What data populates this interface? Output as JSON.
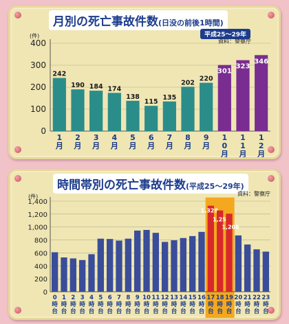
{
  "chart1": {
    "title_main": "月別の死亡事故件数",
    "title_sub": "(日没の前後1時間)",
    "period": "平成25～29年",
    "source": "資料：警察庁",
    "y_unit": "(件)",
    "colors": {
      "normal": "#2a8d8a",
      "highlight": "#7a2d90",
      "label_normal": "#1a1a1a",
      "label_highlight": "#ffffff"
    }
  },
  "chart2": {
    "title_main": "時間帯別の死亡事故件数",
    "title_sub": "(平成25～29年)",
    "source": "資料：警察庁",
    "y_unit": "(件)",
    "colors": {
      "normal": "#3a4d9a",
      "highlight": "#d8282c",
      "highlight_bg": "#f4a820",
      "label_highlight": "#ffffff"
    }
  },
  "chart_data": [
    {
      "type": "bar",
      "title": "月別の死亡事故件数(日没の前後1時間)",
      "subtitle": "平成25～29年",
      "xlabel": "",
      "ylabel": "(件)",
      "ylim": [
        0,
        400
      ],
      "yticks": [
        0,
        100,
        200,
        300,
        400
      ],
      "grid": true,
      "categories": [
        "1月",
        "2月",
        "3月",
        "4月",
        "5月",
        "6月",
        "7月",
        "8月",
        "9月",
        "10月",
        "11月",
        "12月"
      ],
      "values": [
        242,
        190,
        184,
        174,
        138,
        115,
        135,
        202,
        220,
        301,
        323,
        346
      ],
      "highlighted": [
        "10月",
        "11月",
        "12月"
      ],
      "data_labels": true
    },
    {
      "type": "bar",
      "title": "時間帯別の死亡事故件数",
      "subtitle": "平成25～29年",
      "xlabel": "",
      "ylabel": "(件)",
      "ylim": [
        0,
        1400
      ],
      "yticks": [
        0,
        200,
        400,
        600,
        800,
        1000,
        1200,
        1400
      ],
      "grid": true,
      "categories": [
        "0時台",
        "1時台",
        "2時台",
        "3時台",
        "4時台",
        "5時台",
        "6時台",
        "7時台",
        "8時台",
        "9時台",
        "10時台",
        "11時台",
        "12時台",
        "13時台",
        "14時台",
        "15時台",
        "16時台",
        "17時台",
        "18時台",
        "19時台",
        "20時台",
        "21時台",
        "22時台",
        "23時台"
      ],
      "values": [
        610,
        530,
        515,
        490,
        580,
        820,
        815,
        790,
        820,
        945,
        955,
        910,
        770,
        795,
        830,
        860,
        925,
        1329,
        1256,
        1206,
        870,
        730,
        655,
        620
      ],
      "highlighted": [
        "17時台",
        "18時台",
        "19時台"
      ],
      "highlight_labels": [
        "1,329",
        "1,256",
        "1,206"
      ],
      "ytick_labels": [
        "0",
        "200",
        "400",
        "600",
        "800",
        "1,000",
        "1,200",
        "1,400"
      ]
    }
  ]
}
